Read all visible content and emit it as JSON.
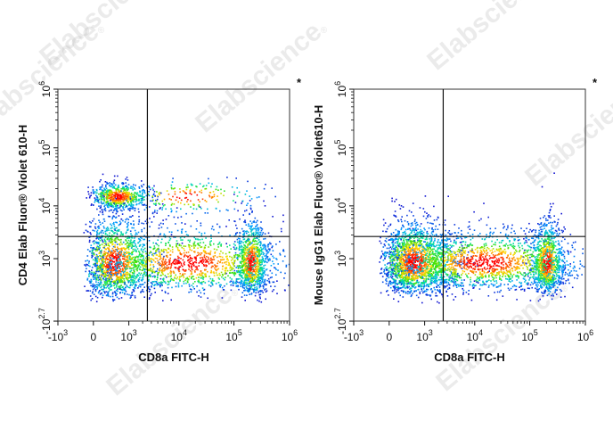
{
  "watermark": {
    "text": "Elabscience",
    "mark": "®"
  },
  "chart_data": [
    {
      "type": "scatter",
      "style": "density-dot-plot",
      "xlabel": "CD8a FITC-H",
      "ylabel": "CD4 Elab Fluor® Violet 610-H",
      "corner_mark": "*",
      "x_ticks": [
        {
          "base": "-10",
          "exp": "3"
        },
        {
          "base": "0",
          "exp": ""
        },
        {
          "base": "10",
          "exp": "3"
        },
        {
          "base": "10",
          "exp": "4"
        },
        {
          "base": "10",
          "exp": "5"
        },
        {
          "base": "10",
          "exp": "6"
        }
      ],
      "y_ticks": [
        {
          "base": "-10",
          "exp": "2.7"
        },
        {
          "base": "10",
          "exp": "3"
        },
        {
          "base": "10",
          "exp": "4"
        },
        {
          "base": "10",
          "exp": "5"
        },
        {
          "base": "10",
          "exp": "6"
        }
      ],
      "gate": {
        "x": 2500,
        "y": 2800
      },
      "populations": [
        {
          "x": 600,
          "y": 15000,
          "xspread": 0.35,
          "yspread": 0.12,
          "count": 650
        },
        {
          "x": 500,
          "y": 900,
          "xspread": 0.45,
          "yspread": 0.45,
          "count": 1400
        },
        {
          "x": 200000,
          "y": 900,
          "xspread": 0.15,
          "yspread": 0.42,
          "count": 900
        },
        {
          "x": 15000,
          "y": 900,
          "xspread": 0.9,
          "yspread": 0.35,
          "count": 1300
        },
        {
          "x": 15000,
          "y": 15000,
          "xspread": 0.7,
          "yspread": 0.15,
          "count": 200
        }
      ]
    },
    {
      "type": "scatter",
      "style": "density-dot-plot",
      "xlabel": "CD8a FITC-H",
      "ylabel": "Mouse IgG1 Elab Fluor® Violet610-H",
      "corner_mark": "*",
      "x_ticks": [
        {
          "base": "-10",
          "exp": "3"
        },
        {
          "base": "0",
          "exp": ""
        },
        {
          "base": "10",
          "exp": "3"
        },
        {
          "base": "10",
          "exp": "4"
        },
        {
          "base": "10",
          "exp": "5"
        },
        {
          "base": "10",
          "exp": "6"
        }
      ],
      "y_ticks": [
        {
          "base": "-10",
          "exp": "2.7"
        },
        {
          "base": "10",
          "exp": "3"
        },
        {
          "base": "10",
          "exp": "4"
        },
        {
          "base": "10",
          "exp": "5"
        },
        {
          "base": "10",
          "exp": "6"
        }
      ],
      "gate": {
        "x": 2500,
        "y": 2800
      },
      "populations": [
        {
          "x": 600,
          "y": 900,
          "xspread": 0.45,
          "yspread": 0.4,
          "count": 1900
        },
        {
          "x": 200000,
          "y": 900,
          "xspread": 0.15,
          "yspread": 0.4,
          "count": 1000
        },
        {
          "x": 15000,
          "y": 900,
          "xspread": 0.9,
          "yspread": 0.32,
          "count": 1500
        }
      ]
    }
  ]
}
